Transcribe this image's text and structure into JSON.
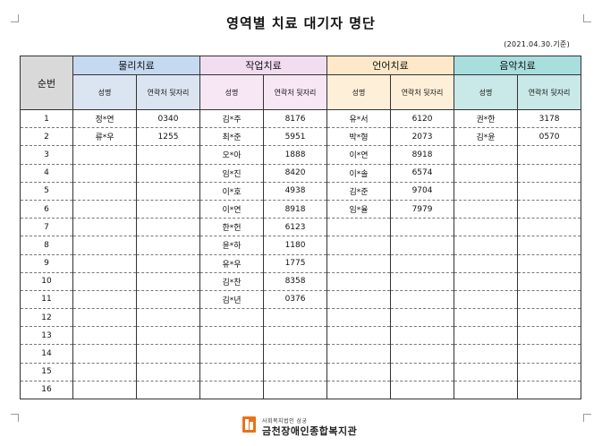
{
  "title": "영역별 치료 대기자 명단",
  "date_note": "(2021.04.30.기준)",
  "seq_header": "순번",
  "sub_headers": {
    "name": "성명",
    "phone": "연락처 뒷자리"
  },
  "categories": [
    {
      "key": "physical",
      "label": "물리치료",
      "color": "#c5d9f1"
    },
    {
      "key": "occupational",
      "label": "작업치료",
      "color": "#f2dcf0"
    },
    {
      "key": "speech",
      "label": "언어치료",
      "color": "#fde9c9"
    },
    {
      "key": "music",
      "label": "음악치료",
      "color": "#a8dede"
    }
  ],
  "rows": [
    {
      "no": "1",
      "physical": [
        "정*연",
        "0340"
      ],
      "occupational": [
        "김*주",
        "8176"
      ],
      "speech": [
        "유*서",
        "6120"
      ],
      "music": [
        "권*한",
        "3178"
      ]
    },
    {
      "no": "2",
      "physical": [
        "류*우",
        "1255"
      ],
      "occupational": [
        "최*준",
        "5951"
      ],
      "speech": [
        "박*형",
        "2073"
      ],
      "music": [
        "김*윤",
        "0570"
      ]
    },
    {
      "no": "3",
      "physical": [
        "",
        ""
      ],
      "occupational": [
        "오*아",
        "1888"
      ],
      "speech": [
        "이*연",
        "8918"
      ],
      "music": [
        "",
        ""
      ]
    },
    {
      "no": "4",
      "physical": [
        "",
        ""
      ],
      "occupational": [
        "임*진",
        "8420"
      ],
      "speech": [
        "이*솔",
        "6574"
      ],
      "music": [
        "",
        ""
      ]
    },
    {
      "no": "5",
      "physical": [
        "",
        ""
      ],
      "occupational": [
        "이*호",
        "4938"
      ],
      "speech": [
        "김*준",
        "9704"
      ],
      "music": [
        "",
        ""
      ]
    },
    {
      "no": "6",
      "physical": [
        "",
        ""
      ],
      "occupational": [
        "이*연",
        "8918"
      ],
      "speech": [
        "임*율",
        "7979"
      ],
      "music": [
        "",
        ""
      ]
    },
    {
      "no": "7",
      "physical": [
        "",
        ""
      ],
      "occupational": [
        "한*헌",
        "6123"
      ],
      "speech": [
        "",
        ""
      ],
      "music": [
        "",
        ""
      ]
    },
    {
      "no": "8",
      "physical": [
        "",
        ""
      ],
      "occupational": [
        "윤*하",
        "1180"
      ],
      "speech": [
        "",
        ""
      ],
      "music": [
        "",
        ""
      ]
    },
    {
      "no": "9",
      "physical": [
        "",
        ""
      ],
      "occupational": [
        "유*우",
        "1775"
      ],
      "speech": [
        "",
        ""
      ],
      "music": [
        "",
        ""
      ]
    },
    {
      "no": "10",
      "physical": [
        "",
        ""
      ],
      "occupational": [
        "김*찬",
        "8358"
      ],
      "speech": [
        "",
        ""
      ],
      "music": [
        "",
        ""
      ]
    },
    {
      "no": "11",
      "physical": [
        "",
        ""
      ],
      "occupational": [
        "김*년",
        "0376"
      ],
      "speech": [
        "",
        ""
      ],
      "music": [
        "",
        ""
      ]
    },
    {
      "no": "12",
      "physical": [
        "",
        ""
      ],
      "occupational": [
        "",
        ""
      ],
      "speech": [
        "",
        ""
      ],
      "music": [
        "",
        ""
      ]
    },
    {
      "no": "13",
      "physical": [
        "",
        ""
      ],
      "occupational": [
        "",
        ""
      ],
      "speech": [
        "",
        ""
      ],
      "music": [
        "",
        ""
      ]
    },
    {
      "no": "14",
      "physical": [
        "",
        ""
      ],
      "occupational": [
        "",
        ""
      ],
      "speech": [
        "",
        ""
      ],
      "music": [
        "",
        ""
      ]
    },
    {
      "no": "15",
      "physical": [
        "",
        ""
      ],
      "occupational": [
        "",
        ""
      ],
      "speech": [
        "",
        ""
      ],
      "music": [
        "",
        ""
      ]
    },
    {
      "no": "16",
      "physical": [
        "",
        ""
      ],
      "occupational": [
        "",
        ""
      ],
      "speech": [
        "",
        ""
      ],
      "music": [
        "",
        ""
      ]
    }
  ],
  "footer": {
    "org_sub": "사회복지법인 삼궁",
    "org_name": "금천장애인종합복지관",
    "logo_icon": "org-logo-icon",
    "logo_color": "#e8731a"
  }
}
